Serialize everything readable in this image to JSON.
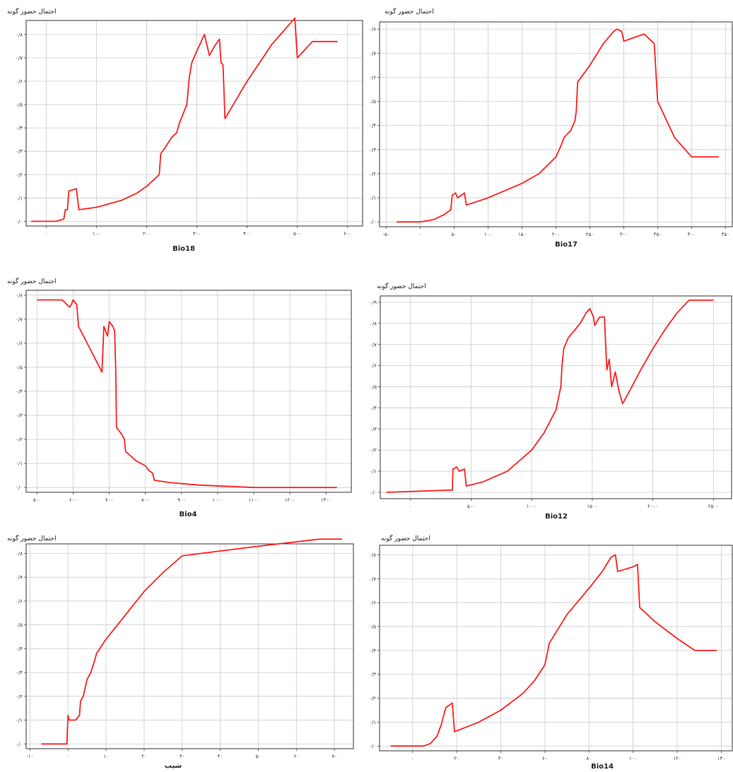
{
  "figure": {
    "background": "#ffffff",
    "line_color": "#ff2020",
    "grid_color": "#cccccc"
  },
  "chart_data": [
    {
      "type": "line",
      "ylabel": "احتمال حضور گونه",
      "xlabel": "Bio18",
      "x_ticks": [
        0,
        100,
        200,
        300,
        400,
        500,
        600
      ],
      "x_tick_labels": [
        "۰",
        "۱۰۰",
        "۲۰۰",
        "۳۰۰",
        "۴۰۰",
        "۵۰۰",
        "۶۰۰"
      ],
      "y_ticks": [
        0,
        0.1,
        0.2,
        0.3,
        0.4,
        0.5,
        0.6,
        0.7,
        0.8
      ],
      "y_tick_labels": [
        "۰/۰",
        "۰/۱",
        "۰/۲",
        "۰/۳",
        "۰/۴",
        "۰/۵",
        "۰/۶",
        "۰/۷",
        "۰/۸"
      ],
      "xlim": [
        -40,
        630
      ],
      "ylim": [
        -0.02,
        0.86
      ],
      "series": [
        {
          "points": [
            [
              -30,
              0.0
            ],
            [
              20,
              0.0
            ],
            [
              35,
              0.01
            ],
            [
              38,
              0.05
            ],
            [
              42,
              0.05
            ],
            [
              45,
              0.13
            ],
            [
              60,
              0.14
            ],
            [
              65,
              0.05
            ],
            [
              100,
              0.06
            ],
            [
              150,
              0.09
            ],
            [
              180,
              0.12
            ],
            [
              200,
              0.15
            ],
            [
              225,
              0.2
            ],
            [
              228,
              0.29
            ],
            [
              235,
              0.31
            ],
            [
              250,
              0.36
            ],
            [
              260,
              0.38
            ],
            [
              265,
              0.42
            ],
            [
              280,
              0.5
            ],
            [
              285,
              0.62
            ],
            [
              290,
              0.68
            ],
            [
              300,
              0.73
            ],
            [
              315,
              0.8
            ],
            [
              325,
              0.71
            ],
            [
              335,
              0.75
            ],
            [
              345,
              0.78
            ],
            [
              348,
              0.68
            ],
            [
              352,
              0.67
            ],
            [
              356,
              0.44
            ],
            [
              400,
              0.6
            ],
            [
              450,
              0.76
            ],
            [
              495,
              0.87
            ],
            [
              500,
              0.7
            ],
            [
              530,
              0.77
            ],
            [
              580,
              0.77
            ]
          ]
        }
      ]
    },
    {
      "type": "line",
      "ylabel": "احتمال حضور گونه",
      "xlabel": "Bio17",
      "x_ticks": [
        -50,
        0,
        50,
        100,
        150,
        200,
        250,
        300,
        350,
        400,
        450
      ],
      "x_tick_labels": [
        "-۵۰",
        "۰",
        "۵۰",
        "۱۰۰",
        "۱۵۰",
        "۲۰۰",
        "۲۵۰",
        "۳۰۰",
        "۳۵۰",
        "۴۰۰",
        "۴۵۰"
      ],
      "y_ticks": [
        0,
        0.1,
        0.2,
        0.3,
        0.4,
        0.5,
        0.6,
        0.7,
        0.8
      ],
      "y_tick_labels": [
        "۰/۰",
        "۰/۱",
        "۰/۲",
        "۰/۳",
        "۰/۴",
        "۰/۵",
        "۰/۶",
        "۰/۷",
        "۰/۸"
      ],
      "xlim": [
        -60,
        460
      ],
      "ylim": [
        -0.02,
        0.83
      ],
      "series": [
        {
          "points": [
            [
              -35,
              0.0
            ],
            [
              0,
              0.0
            ],
            [
              20,
              0.01
            ],
            [
              35,
              0.03
            ],
            [
              45,
              0.05
            ],
            [
              47,
              0.11
            ],
            [
              52,
              0.12
            ],
            [
              55,
              0.1
            ],
            [
              65,
              0.12
            ],
            [
              68,
              0.07
            ],
            [
              100,
              0.1
            ],
            [
              150,
              0.16
            ],
            [
              175,
              0.2
            ],
            [
              200,
              0.27
            ],
            [
              208,
              0.32
            ],
            [
              212,
              0.35
            ],
            [
              222,
              0.38
            ],
            [
              228,
              0.42
            ],
            [
              230,
              0.46
            ],
            [
              232,
              0.58
            ],
            [
              250,
              0.65
            ],
            [
              270,
              0.74
            ],
            [
              285,
              0.79
            ],
            [
              290,
              0.8
            ],
            [
              297,
              0.79
            ],
            [
              300,
              0.75
            ],
            [
              330,
              0.78
            ],
            [
              345,
              0.74
            ],
            [
              350,
              0.5
            ],
            [
              375,
              0.35
            ],
            [
              400,
              0.27
            ],
            [
              440,
              0.27
            ]
          ]
        }
      ]
    },
    {
      "type": "line",
      "ylabel": "احتمال حضور گونه",
      "xlabel": "Bio4",
      "x_ticks": [
        500,
        600,
        700,
        800,
        900,
        1000,
        1100,
        1200,
        1300
      ],
      "x_tick_labels": [
        "۵۰۰",
        "۶۰۰",
        "۷۰۰",
        "۸۰۰",
        "۹۰۰",
        "۱۰۰۰",
        "۱۱۰۰",
        "۱۲۰۰",
        "۱۳۰۰"
      ],
      "y_ticks": [
        0,
        0.1,
        0.2,
        0.3,
        0.4,
        0.5,
        0.6,
        0.7,
        0.8
      ],
      "y_tick_labels": [
        "۰/۰",
        "۰/۱",
        "۰/۲",
        "۰/۳",
        "۰/۴",
        "۰/۵",
        "۰/۶",
        "۰/۷",
        "۰/۸"
      ],
      "xlim": [
        470,
        1370
      ],
      "ylim": [
        -0.02,
        0.82
      ],
      "series": [
        {
          "points": [
            [
              500,
              0.78
            ],
            [
              570,
              0.78
            ],
            [
              590,
              0.75
            ],
            [
              595,
              0.76
            ],
            [
              600,
              0.78
            ],
            [
              610,
              0.76
            ],
            [
              615,
              0.67
            ],
            [
              680,
              0.48
            ],
            [
              685,
              0.67
            ],
            [
              695,
              0.63
            ],
            [
              700,
              0.69
            ],
            [
              710,
              0.67
            ],
            [
              715,
              0.65
            ],
            [
              718,
              0.48
            ],
            [
              720,
              0.25
            ],
            [
              735,
              0.22
            ],
            [
              742,
              0.2
            ],
            [
              745,
              0.15
            ],
            [
              775,
              0.11
            ],
            [
              800,
              0.09
            ],
            [
              810,
              0.07
            ],
            [
              820,
              0.06
            ],
            [
              825,
              0.03
            ],
            [
              870,
              0.02
            ],
            [
              950,
              0.01
            ],
            [
              1100,
              0.0
            ],
            [
              1330,
              0.0
            ]
          ]
        }
      ]
    },
    {
      "type": "line",
      "ylabel": "احتمال حضور گونه",
      "xlabel": "Bio12",
      "x_ticks": [
        0,
        500,
        1000,
        1500,
        2000,
        2500
      ],
      "x_tick_labels": [
        "۰",
        "۵۰۰",
        "۱۰۰۰",
        "۱۵۰۰",
        "۲۰۰۰",
        "۲۵۰۰"
      ],
      "y_ticks": [
        0,
        0.1,
        0.2,
        0.3,
        0.4,
        0.5,
        0.6,
        0.7,
        0.8,
        0.9
      ],
      "y_tick_labels": [
        "۰/۰",
        "۰/۱",
        "۰/۲",
        "۰/۳",
        "۰/۴",
        "۰/۵",
        "۰/۶",
        "۰/۷",
        "۰/۸",
        "۰/۹"
      ],
      "xlim": [
        -250,
        2650
      ],
      "ylim": [
        -0.03,
        0.93
      ],
      "series": [
        {
          "points": [
            [
              -200,
              0.0
            ],
            [
              300,
              0.01
            ],
            [
              345,
              0.01
            ],
            [
              350,
              0.11
            ],
            [
              380,
              0.12
            ],
            [
              400,
              0.1
            ],
            [
              445,
              0.11
            ],
            [
              460,
              0.03
            ],
            [
              600,
              0.05
            ],
            [
              800,
              0.1
            ],
            [
              1000,
              0.2
            ],
            [
              1100,
              0.28
            ],
            [
              1200,
              0.39
            ],
            [
              1240,
              0.5
            ],
            [
              1250,
              0.6
            ],
            [
              1265,
              0.68
            ],
            [
              1300,
              0.73
            ],
            [
              1400,
              0.8
            ],
            [
              1450,
              0.85
            ],
            [
              1480,
              0.87
            ],
            [
              1495,
              0.85
            ],
            [
              1510,
              0.83
            ],
            [
              1520,
              0.79
            ],
            [
              1560,
              0.83
            ],
            [
              1600,
              0.83
            ],
            [
              1620,
              0.58
            ],
            [
              1640,
              0.63
            ],
            [
              1660,
              0.5
            ],
            [
              1690,
              0.57
            ],
            [
              1720,
              0.48
            ],
            [
              1750,
              0.42
            ],
            [
              1780,
              0.45
            ],
            [
              1900,
              0.58
            ],
            [
              2000,
              0.68
            ],
            [
              2100,
              0.77
            ],
            [
              2200,
              0.85
            ],
            [
              2300,
              0.91
            ],
            [
              2500,
              0.91
            ]
          ]
        }
      ]
    },
    {
      "type": "line",
      "ylabel": "احتمال حضور گونه",
      "xlabel": "شیب",
      "x_ticks": [
        -10,
        0,
        10,
        20,
        30,
        40,
        50,
        60,
        70
      ],
      "x_tick_labels": [
        "-۱۰",
        "۰",
        "۱۰",
        "۲۰",
        "۳۰",
        "۴۰",
        "۵۰",
        "۶۰",
        "۷۰"
      ],
      "y_ticks": [
        0,
        0.1,
        0.2,
        0.3,
        0.4,
        0.5,
        0.6,
        0.7,
        0.8
      ],
      "y_tick_labels": [
        "۰/۰",
        "۰/۱",
        "۰/۲",
        "۰/۳",
        "۰/۴",
        "۰/۵",
        "۰/۶",
        "۰/۷",
        "۰/۸"
      ],
      "xlim": [
        -11,
        75
      ],
      "ylim": [
        -0.02,
        0.84
      ],
      "series": [
        {
          "points": [
            [
              -7,
              0.0
            ],
            [
              -0.3,
              0.0
            ],
            [
              0,
              0.12
            ],
            [
              0.3,
              0.1
            ],
            [
              2,
              0.1
            ],
            [
              3,
              0.12
            ],
            [
              3.3,
              0.18
            ],
            [
              4,
              0.2
            ],
            [
              5,
              0.27
            ],
            [
              6,
              0.3
            ],
            [
              7,
              0.35
            ],
            [
              7.5,
              0.38
            ],
            [
              10,
              0.44
            ],
            [
              15,
              0.54
            ],
            [
              20,
              0.64
            ],
            [
              25,
              0.72
            ],
            [
              30,
              0.79
            ],
            [
              50,
              0.83
            ],
            [
              66,
              0.86
            ],
            [
              72,
              0.86
            ]
          ]
        }
      ]
    },
    {
      "type": "line",
      "ylabel": "احتمال حضور گونه",
      "xlabel": "Bio14",
      "x_ticks": [
        0,
        20,
        40,
        60,
        80,
        100,
        120,
        140
      ],
      "x_tick_labels": [
        "۰",
        "۲۰",
        "۴۰",
        "۶۰",
        "۸۰",
        "۱۰۰",
        "۱۲۰",
        "۱۴۰"
      ],
      "y_ticks": [
        0,
        0.1,
        0.2,
        0.3,
        0.4,
        0.5,
        0.6,
        0.7,
        0.8
      ],
      "y_tick_labels": [
        "۰/۰",
        "۰/۱",
        "۰/۲",
        "۰/۳",
        "۰/۴",
        "۰/۵",
        "۰/۶",
        "۰/۷",
        "۰/۸"
      ],
      "xlim": [
        -15,
        145
      ],
      "ylim": [
        -0.02,
        0.84
      ],
      "series": [
        {
          "points": [
            [
              -10,
              0.0
            ],
            [
              5,
              0.0
            ],
            [
              8,
              0.01
            ],
            [
              11,
              0.04
            ],
            [
              13,
              0.09
            ],
            [
              15,
              0.16
            ],
            [
              18,
              0.18
            ],
            [
              19,
              0.06
            ],
            [
              30,
              0.1
            ],
            [
              40,
              0.15
            ],
            [
              50,
              0.22
            ],
            [
              55,
              0.27
            ],
            [
              60,
              0.34
            ],
            [
              62,
              0.43
            ],
            [
              70,
              0.55
            ],
            [
              80,
              0.66
            ],
            [
              86,
              0.73
            ],
            [
              90,
              0.79
            ],
            [
              92,
              0.8
            ],
            [
              93,
              0.73
            ],
            [
              100,
              0.75
            ],
            [
              102,
              0.76
            ],
            [
              103,
              0.58
            ],
            [
              110,
              0.52
            ],
            [
              120,
              0.45
            ],
            [
              128,
              0.4
            ],
            [
              138,
              0.4
            ]
          ]
        }
      ]
    }
  ]
}
